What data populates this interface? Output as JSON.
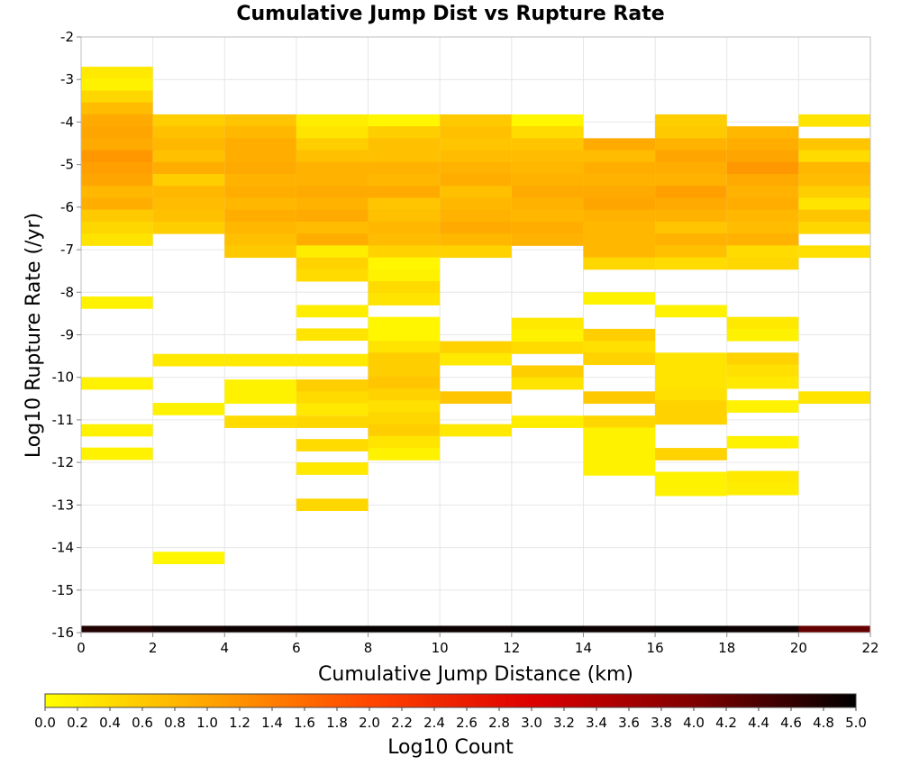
{
  "chart_data": {
    "type": "heatmap",
    "title": "Cumulative Jump Dist vs Rupture Rate",
    "xlabel": "Cumulative Jump Distance (km)",
    "ylabel": "Log10 Rupture Rate (/yr)",
    "colorbar_label": "Log10 Count",
    "xlim": [
      0,
      22
    ],
    "ylim": [
      -16,
      -2
    ],
    "x_ticks": [
      0,
      2,
      4,
      6,
      8,
      10,
      12,
      14,
      16,
      18,
      20,
      22
    ],
    "y_ticks": [
      -2,
      -3,
      -4,
      -5,
      -6,
      -7,
      -8,
      -9,
      -10,
      -11,
      -12,
      -13,
      -14,
      -15,
      -16
    ],
    "colorbar_range": [
      0.0,
      5.0
    ],
    "colorbar_ticks": [
      "0.0",
      "0.2",
      "0.4",
      "0.6",
      "0.8",
      "1.0",
      "1.2",
      "1.4",
      "1.6",
      "1.8",
      "2.0",
      "2.2",
      "2.4",
      "2.6",
      "2.8",
      "3.0",
      "3.2",
      "3.4",
      "3.6",
      "3.8",
      "4.0",
      "4.2",
      "4.4",
      "4.6",
      "4.8",
      "5.0"
    ],
    "x_bin_width": 2,
    "y_bin_height": 0.28,
    "grid": true,
    "colormap": [
      "#ffff00",
      "#ffa500",
      "#ff4500",
      "#dd0000",
      "#800000",
      "#000000"
    ],
    "columns": [
      {
        "x": 0,
        "cells": [
          {
            "y": -2.7,
            "v": 0.25
          },
          {
            "y": -2.98,
            "v": 0.15
          },
          {
            "y": -3.26,
            "v": 0.45
          },
          {
            "y": -3.54,
            "v": 0.75
          },
          {
            "y": -3.82,
            "v": 0.95
          },
          {
            "y": -4.1,
            "v": 1.0
          },
          {
            "y": -4.38,
            "v": 0.95
          },
          {
            "y": -4.66,
            "v": 1.15
          },
          {
            "y": -4.94,
            "v": 1.05
          },
          {
            "y": -5.22,
            "v": 1.0
          },
          {
            "y": -5.5,
            "v": 0.8
          },
          {
            "y": -5.78,
            "v": 0.9
          },
          {
            "y": -6.06,
            "v": 0.6
          },
          {
            "y": -6.34,
            "v": 0.45
          },
          {
            "y": -6.62,
            "v": 0.3
          },
          {
            "y": -8.1,
            "v": 0.15
          },
          {
            "y": -10.0,
            "v": 0.15
          },
          {
            "y": -11.1,
            "v": 0.15
          },
          {
            "y": -11.65,
            "v": 0.15
          }
        ]
      },
      {
        "x": 2,
        "cells": [
          {
            "y": -3.82,
            "v": 0.55
          },
          {
            "y": -4.1,
            "v": 0.7
          },
          {
            "y": -4.38,
            "v": 0.8
          },
          {
            "y": -4.66,
            "v": 0.7
          },
          {
            "y": -4.94,
            "v": 0.9
          },
          {
            "y": -5.22,
            "v": 0.55
          },
          {
            "y": -5.5,
            "v": 0.8
          },
          {
            "y": -5.78,
            "v": 0.75
          },
          {
            "y": -6.06,
            "v": 0.7
          },
          {
            "y": -6.34,
            "v": 0.55
          },
          {
            "y": -9.45,
            "v": 0.25
          },
          {
            "y": -10.6,
            "v": 0.15
          },
          {
            "y": -14.1,
            "v": 0.1
          }
        ]
      },
      {
        "x": 4,
        "cells": [
          {
            "y": -3.82,
            "v": 0.65
          },
          {
            "y": -4.1,
            "v": 0.8
          },
          {
            "y": -4.38,
            "v": 0.9
          },
          {
            "y": -4.66,
            "v": 0.9
          },
          {
            "y": -4.94,
            "v": 0.95
          },
          {
            "y": -5.22,
            "v": 0.85
          },
          {
            "y": -5.5,
            "v": 0.9
          },
          {
            "y": -5.78,
            "v": 0.8
          },
          {
            "y": -6.06,
            "v": 0.9
          },
          {
            "y": -6.34,
            "v": 0.8
          },
          {
            "y": -6.62,
            "v": 0.7
          },
          {
            "y": -6.9,
            "v": 0.6
          },
          {
            "y": -9.45,
            "v": 0.25
          },
          {
            "y": -10.05,
            "v": 0.15
          },
          {
            "y": -10.33,
            "v": 0.15
          },
          {
            "y": -10.9,
            "v": 0.4
          }
        ]
      },
      {
        "x": 6,
        "cells": [
          {
            "y": -3.82,
            "v": 0.2
          },
          {
            "y": -4.1,
            "v": 0.3
          },
          {
            "y": -4.38,
            "v": 0.55
          },
          {
            "y": -4.66,
            "v": 0.7
          },
          {
            "y": -4.94,
            "v": 0.85
          },
          {
            "y": -5.22,
            "v": 0.85
          },
          {
            "y": -5.5,
            "v": 0.95
          },
          {
            "y": -5.78,
            "v": 0.85
          },
          {
            "y": -6.06,
            "v": 0.95
          },
          {
            "y": -6.34,
            "v": 0.75
          },
          {
            "y": -6.62,
            "v": 0.9
          },
          {
            "y": -6.9,
            "v": 0.2
          },
          {
            "y": -7.18,
            "v": 0.5
          },
          {
            "y": -7.46,
            "v": 0.4
          },
          {
            "y": -8.3,
            "v": 0.2
          },
          {
            "y": -8.85,
            "v": 0.3
          },
          {
            "y": -9.45,
            "v": 0.25
          },
          {
            "y": -10.05,
            "v": 0.55
          },
          {
            "y": -10.33,
            "v": 0.4
          },
          {
            "y": -10.61,
            "v": 0.25
          },
          {
            "y": -10.9,
            "v": 0.45
          },
          {
            "y": -11.45,
            "v": 0.4
          },
          {
            "y": -12.0,
            "v": 0.25
          },
          {
            "y": -12.85,
            "v": 0.45
          }
        ]
      },
      {
        "x": 8,
        "cells": [
          {
            "y": -3.82,
            "v": 0.1
          },
          {
            "y": -4.1,
            "v": 0.55
          },
          {
            "y": -4.38,
            "v": 0.7
          },
          {
            "y": -4.66,
            "v": 0.7
          },
          {
            "y": -4.94,
            "v": 0.85
          },
          {
            "y": -5.22,
            "v": 0.8
          },
          {
            "y": -5.5,
            "v": 0.95
          },
          {
            "y": -5.78,
            "v": 0.65
          },
          {
            "y": -6.06,
            "v": 0.7
          },
          {
            "y": -6.34,
            "v": 0.8
          },
          {
            "y": -6.62,
            "v": 0.75
          },
          {
            "y": -6.9,
            "v": 0.5
          },
          {
            "y": -7.18,
            "v": 0.1
          },
          {
            "y": -7.46,
            "v": 0.15
          },
          {
            "y": -7.74,
            "v": 0.4
          },
          {
            "y": -8.02,
            "v": 0.3
          },
          {
            "y": -8.58,
            "v": 0.1
          },
          {
            "y": -8.86,
            "v": 0.1
          },
          {
            "y": -9.14,
            "v": 0.3
          },
          {
            "y": -9.42,
            "v": 0.55
          },
          {
            "y": -9.7,
            "v": 0.55
          },
          {
            "y": -9.98,
            "v": 0.65
          },
          {
            "y": -10.26,
            "v": 0.5
          },
          {
            "y": -10.54,
            "v": 0.35
          },
          {
            "y": -10.82,
            "v": 0.45
          },
          {
            "y": -11.1,
            "v": 0.55
          },
          {
            "y": -11.38,
            "v": 0.3
          },
          {
            "y": -11.66,
            "v": 0.15
          }
        ]
      },
      {
        "x": 10,
        "cells": [
          {
            "y": -3.82,
            "v": 0.6
          },
          {
            "y": -4.1,
            "v": 0.7
          },
          {
            "y": -4.38,
            "v": 0.65
          },
          {
            "y": -4.66,
            "v": 0.75
          },
          {
            "y": -4.94,
            "v": 0.85
          },
          {
            "y": -5.22,
            "v": 0.9
          },
          {
            "y": -5.5,
            "v": 0.7
          },
          {
            "y": -5.78,
            "v": 0.8
          },
          {
            "y": -6.06,
            "v": 0.85
          },
          {
            "y": -6.34,
            "v": 0.95
          },
          {
            "y": -6.62,
            "v": 0.8
          },
          {
            "y": -6.9,
            "v": 0.5
          },
          {
            "y": -9.15,
            "v": 0.5
          },
          {
            "y": -9.43,
            "v": 0.25
          },
          {
            "y": -10.33,
            "v": 0.65
          },
          {
            "y": -11.1,
            "v": 0.25
          }
        ]
      },
      {
        "x": 12,
        "cells": [
          {
            "y": -3.82,
            "v": 0.1
          },
          {
            "y": -4.1,
            "v": 0.4
          },
          {
            "y": -4.38,
            "v": 0.65
          },
          {
            "y": -4.66,
            "v": 0.75
          },
          {
            "y": -4.94,
            "v": 0.8
          },
          {
            "y": -5.22,
            "v": 0.85
          },
          {
            "y": -5.5,
            "v": 0.95
          },
          {
            "y": -5.78,
            "v": 0.85
          },
          {
            "y": -6.06,
            "v": 0.8
          },
          {
            "y": -6.34,
            "v": 0.9
          },
          {
            "y": -6.62,
            "v": 0.85
          },
          {
            "y": -8.6,
            "v": 0.25
          },
          {
            "y": -8.88,
            "v": 0.15
          },
          {
            "y": -9.16,
            "v": 0.4
          },
          {
            "y": -9.72,
            "v": 0.55
          },
          {
            "y": -10.0,
            "v": 0.3
          },
          {
            "y": -10.9,
            "v": 0.2
          }
        ]
      },
      {
        "x": 14,
        "cells": [
          {
            "y": -4.38,
            "v": 0.95
          },
          {
            "y": -4.66,
            "v": 0.75
          },
          {
            "y": -4.94,
            "v": 0.9
          },
          {
            "y": -5.22,
            "v": 0.85
          },
          {
            "y": -5.5,
            "v": 0.95
          },
          {
            "y": -5.78,
            "v": 1.0
          },
          {
            "y": -6.06,
            "v": 0.85
          },
          {
            "y": -6.34,
            "v": 0.8
          },
          {
            "y": -6.62,
            "v": 0.8
          },
          {
            "y": -6.9,
            "v": 0.8
          },
          {
            "y": -7.18,
            "v": 0.45
          },
          {
            "y": -8.0,
            "v": 0.15
          },
          {
            "y": -8.86,
            "v": 0.55
          },
          {
            "y": -9.14,
            "v": 0.35
          },
          {
            "y": -9.42,
            "v": 0.5
          },
          {
            "y": -10.33,
            "v": 0.6
          },
          {
            "y": -10.9,
            "v": 0.45
          },
          {
            "y": -11.18,
            "v": 0.15
          },
          {
            "y": -11.46,
            "v": 0.15
          },
          {
            "y": -11.74,
            "v": 0.15
          },
          {
            "y": -12.02,
            "v": 0.15
          }
        ]
      },
      {
        "x": 16,
        "cells": [
          {
            "y": -3.82,
            "v": 0.55
          },
          {
            "y": -4.1,
            "v": 0.6
          },
          {
            "y": -4.38,
            "v": 0.85
          },
          {
            "y": -4.66,
            "v": 1.0
          },
          {
            "y": -4.94,
            "v": 0.9
          },
          {
            "y": -5.22,
            "v": 0.85
          },
          {
            "y": -5.5,
            "v": 1.05
          },
          {
            "y": -5.78,
            "v": 0.95
          },
          {
            "y": -6.06,
            "v": 0.85
          },
          {
            "y": -6.34,
            "v": 0.65
          },
          {
            "y": -6.62,
            "v": 0.85
          },
          {
            "y": -6.9,
            "v": 0.7
          },
          {
            "y": -7.18,
            "v": 0.4
          },
          {
            "y": -8.3,
            "v": 0.15
          },
          {
            "y": -9.42,
            "v": 0.3
          },
          {
            "y": -9.7,
            "v": 0.3
          },
          {
            "y": -9.98,
            "v": 0.3
          },
          {
            "y": -10.26,
            "v": 0.35
          },
          {
            "y": -10.54,
            "v": 0.5
          },
          {
            "y": -10.82,
            "v": 0.5
          },
          {
            "y": -11.66,
            "v": 0.5
          },
          {
            "y": -12.22,
            "v": 0.15
          },
          {
            "y": -12.5,
            "v": 0.15
          }
        ]
      },
      {
        "x": 18,
        "cells": [
          {
            "y": -4.1,
            "v": 0.8
          },
          {
            "y": -4.38,
            "v": 0.9
          },
          {
            "y": -4.66,
            "v": 1.0
          },
          {
            "y": -4.94,
            "v": 1.15
          },
          {
            "y": -5.22,
            "v": 0.95
          },
          {
            "y": -5.5,
            "v": 0.85
          },
          {
            "y": -5.78,
            "v": 0.9
          },
          {
            "y": -6.06,
            "v": 0.8
          },
          {
            "y": -6.34,
            "v": 0.75
          },
          {
            "y": -6.62,
            "v": 0.85
          },
          {
            "y": -6.9,
            "v": 0.4
          },
          {
            "y": -7.18,
            "v": 0.45
          },
          {
            "y": -8.58,
            "v": 0.25
          },
          {
            "y": -8.86,
            "v": 0.15
          },
          {
            "y": -9.42,
            "v": 0.5
          },
          {
            "y": -9.7,
            "v": 0.35
          },
          {
            "y": -9.98,
            "v": 0.25
          },
          {
            "y": -10.54,
            "v": 0.15
          },
          {
            "y": -11.38,
            "v": 0.15
          },
          {
            "y": -12.2,
            "v": 0.25
          },
          {
            "y": -12.48,
            "v": 0.2
          }
        ]
      },
      {
        "x": 20,
        "cells": [
          {
            "y": -3.82,
            "v": 0.3
          },
          {
            "y": -4.38,
            "v": 0.65
          },
          {
            "y": -4.66,
            "v": 0.4
          },
          {
            "y": -4.94,
            "v": 0.8
          },
          {
            "y": -5.22,
            "v": 0.75
          },
          {
            "y": -5.5,
            "v": 0.55
          },
          {
            "y": -5.78,
            "v": 0.3
          },
          {
            "y": -6.06,
            "v": 0.65
          },
          {
            "y": -6.34,
            "v": 0.45
          },
          {
            "y": -6.9,
            "v": 0.35
          },
          {
            "y": -10.33,
            "v": 0.3
          }
        ]
      }
    ],
    "baseline_row": {
      "y": -16.0,
      "height": 0.16,
      "values": [
        4.75,
        4.85,
        4.9,
        4.95,
        4.95,
        4.9,
        4.95,
        4.9,
        4.95,
        4.9,
        4.2
      ]
    }
  }
}
